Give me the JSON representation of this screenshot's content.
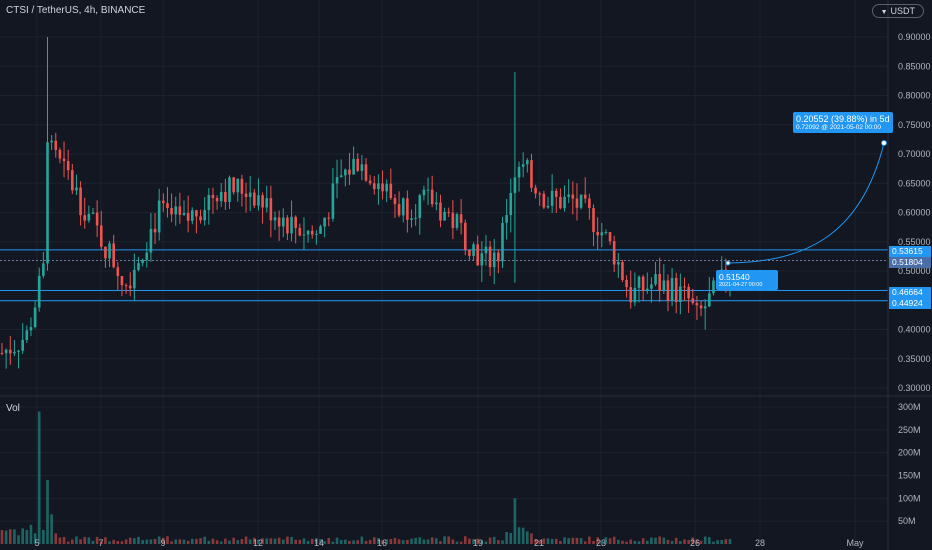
{
  "header": {
    "symbol_title": "CTSI / TetherUS, 4h, BINANCE",
    "currency_badge": "USDT",
    "volume_label": "Vol"
  },
  "axes": {
    "price_ticks": [
      "0.90000",
      "0.85000",
      "0.80000",
      "0.75000",
      "0.70000",
      "0.65000",
      "0.60000",
      "0.55000",
      "0.50000",
      "0.45000",
      "0.40000",
      "0.35000",
      "0.30000"
    ],
    "volume_ticks": [
      "300M",
      "250M",
      "200M",
      "150M",
      "100M",
      "50M"
    ],
    "date_ticks": [
      "5",
      "7",
      "9",
      "12",
      "14",
      "16",
      "19",
      "21",
      "23",
      "26",
      "28",
      "May"
    ]
  },
  "price_labels": {
    "top_line": "0.53615",
    "current": "0.51804",
    "upper_support": "0.46664",
    "lower_support": "0.44924"
  },
  "annotations": {
    "projection": {
      "main": "0.20552 (39.88%) in 5d",
      "sub": "0.72092 @ 2021-05-02  00:00"
    },
    "entry": {
      "main": "0.51540",
      "sub": "2021-04-27  00:00"
    }
  },
  "colors": {
    "background": "#131722",
    "up": "#26a69a",
    "down": "#ef5350",
    "accent": "#2196f3",
    "text": "#b2b5be"
  },
  "chart_data": {
    "type": "candlestick",
    "title": "CTSI / TetherUS, 4h, BINANCE",
    "price_range": [
      0.3,
      0.92
    ],
    "volume_range": [
      0,
      300000000
    ],
    "horizontal_levels": [
      0.53615,
      0.51804,
      0.46664,
      0.44924
    ],
    "candles_sampled": [
      {
        "date": "2021-04-04",
        "open": 0.36,
        "high": 0.38,
        "low": 0.345,
        "close": 0.37
      },
      {
        "date": "2021-04-05",
        "open": 0.52,
        "high": 0.9,
        "low": 0.5,
        "close": 0.65
      },
      {
        "date": "2021-04-06",
        "open": 0.7,
        "high": 0.8,
        "low": 0.62,
        "close": 0.66
      },
      {
        "date": "2021-04-07",
        "open": 0.58,
        "high": 0.6,
        "low": 0.5,
        "close": 0.52
      },
      {
        "date": "2021-04-08",
        "open": 0.48,
        "high": 0.53,
        "low": 0.45,
        "close": 0.51
      },
      {
        "date": "2021-04-09",
        "open": 0.58,
        "high": 0.65,
        "low": 0.55,
        "close": 0.6
      },
      {
        "date": "2021-04-11",
        "open": 0.62,
        "high": 0.74,
        "low": 0.55,
        "close": 0.66
      },
      {
        "date": "2021-04-12",
        "open": 0.64,
        "high": 0.68,
        "low": 0.6,
        "close": 0.63
      },
      {
        "date": "2021-04-14",
        "open": 0.57,
        "high": 0.59,
        "low": 0.55,
        "close": 0.56
      },
      {
        "date": "2021-04-16",
        "open": 0.66,
        "high": 0.73,
        "low": 0.62,
        "close": 0.7
      },
      {
        "date": "2021-04-17",
        "open": 0.62,
        "high": 0.66,
        "low": 0.58,
        "close": 0.6
      },
      {
        "date": "2021-04-19",
        "open": 0.55,
        "high": 0.58,
        "low": 0.48,
        "close": 0.5
      },
      {
        "date": "2021-04-20",
        "open": 0.57,
        "high": 0.84,
        "low": 0.54,
        "close": 0.69
      },
      {
        "date": "2021-04-21",
        "open": 0.62,
        "high": 0.68,
        "low": 0.58,
        "close": 0.63
      },
      {
        "date": "2021-04-22",
        "open": 0.62,
        "high": 0.66,
        "low": 0.55,
        "close": 0.58
      },
      {
        "date": "2021-04-23",
        "open": 0.52,
        "high": 0.57,
        "low": 0.44,
        "close": 0.46
      },
      {
        "date": "2021-04-24",
        "open": 0.46,
        "high": 0.51,
        "low": 0.43,
        "close": 0.48
      },
      {
        "date": "2021-04-25",
        "open": 0.46,
        "high": 0.5,
        "low": 0.44,
        "close": 0.47
      },
      {
        "date": "2021-04-26",
        "open": 0.44,
        "high": 0.48,
        "low": 0.4,
        "close": 0.46
      },
      {
        "date": "2021-04-27",
        "open": 0.49,
        "high": 0.55,
        "low": 0.47,
        "close": 0.515
      }
    ],
    "volume_peaks": [
      {
        "date": "2021-04-05",
        "value": 290000000
      },
      {
        "date": "2021-04-05",
        "value": 140000000
      },
      {
        "date": "2021-04-20",
        "value": 100000000
      }
    ]
  }
}
